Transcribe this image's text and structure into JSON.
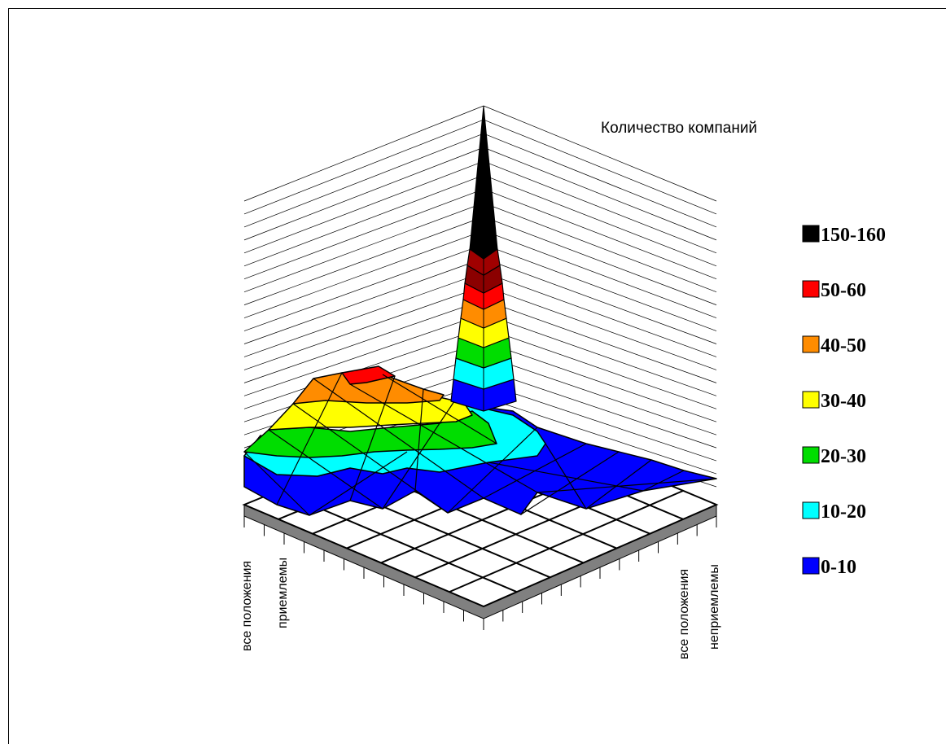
{
  "chart_data": {
    "type": "surface3d",
    "title": "Количество компаний",
    "axis_labels": {
      "left_low": "все положения",
      "left_high": "приемлемы",
      "right_low": "все положения",
      "right_high": "неприемлемы"
    },
    "legend_position": "right",
    "legend": [
      {
        "label": "150-160",
        "color": "#000000"
      },
      {
        "label": "50-60",
        "color": "#ff0000"
      },
      {
        "label": "40-50",
        "color": "#ff8c00"
      },
      {
        "label": "30-40",
        "color": "#ffff00"
      },
      {
        "label": "20-30",
        "color": "#00dd00"
      },
      {
        "label": "10-20",
        "color": "#00ffff"
      },
      {
        "label": "0-10",
        "color": "#0000ff"
      }
    ],
    "grid": true,
    "peak_value": 160
  }
}
